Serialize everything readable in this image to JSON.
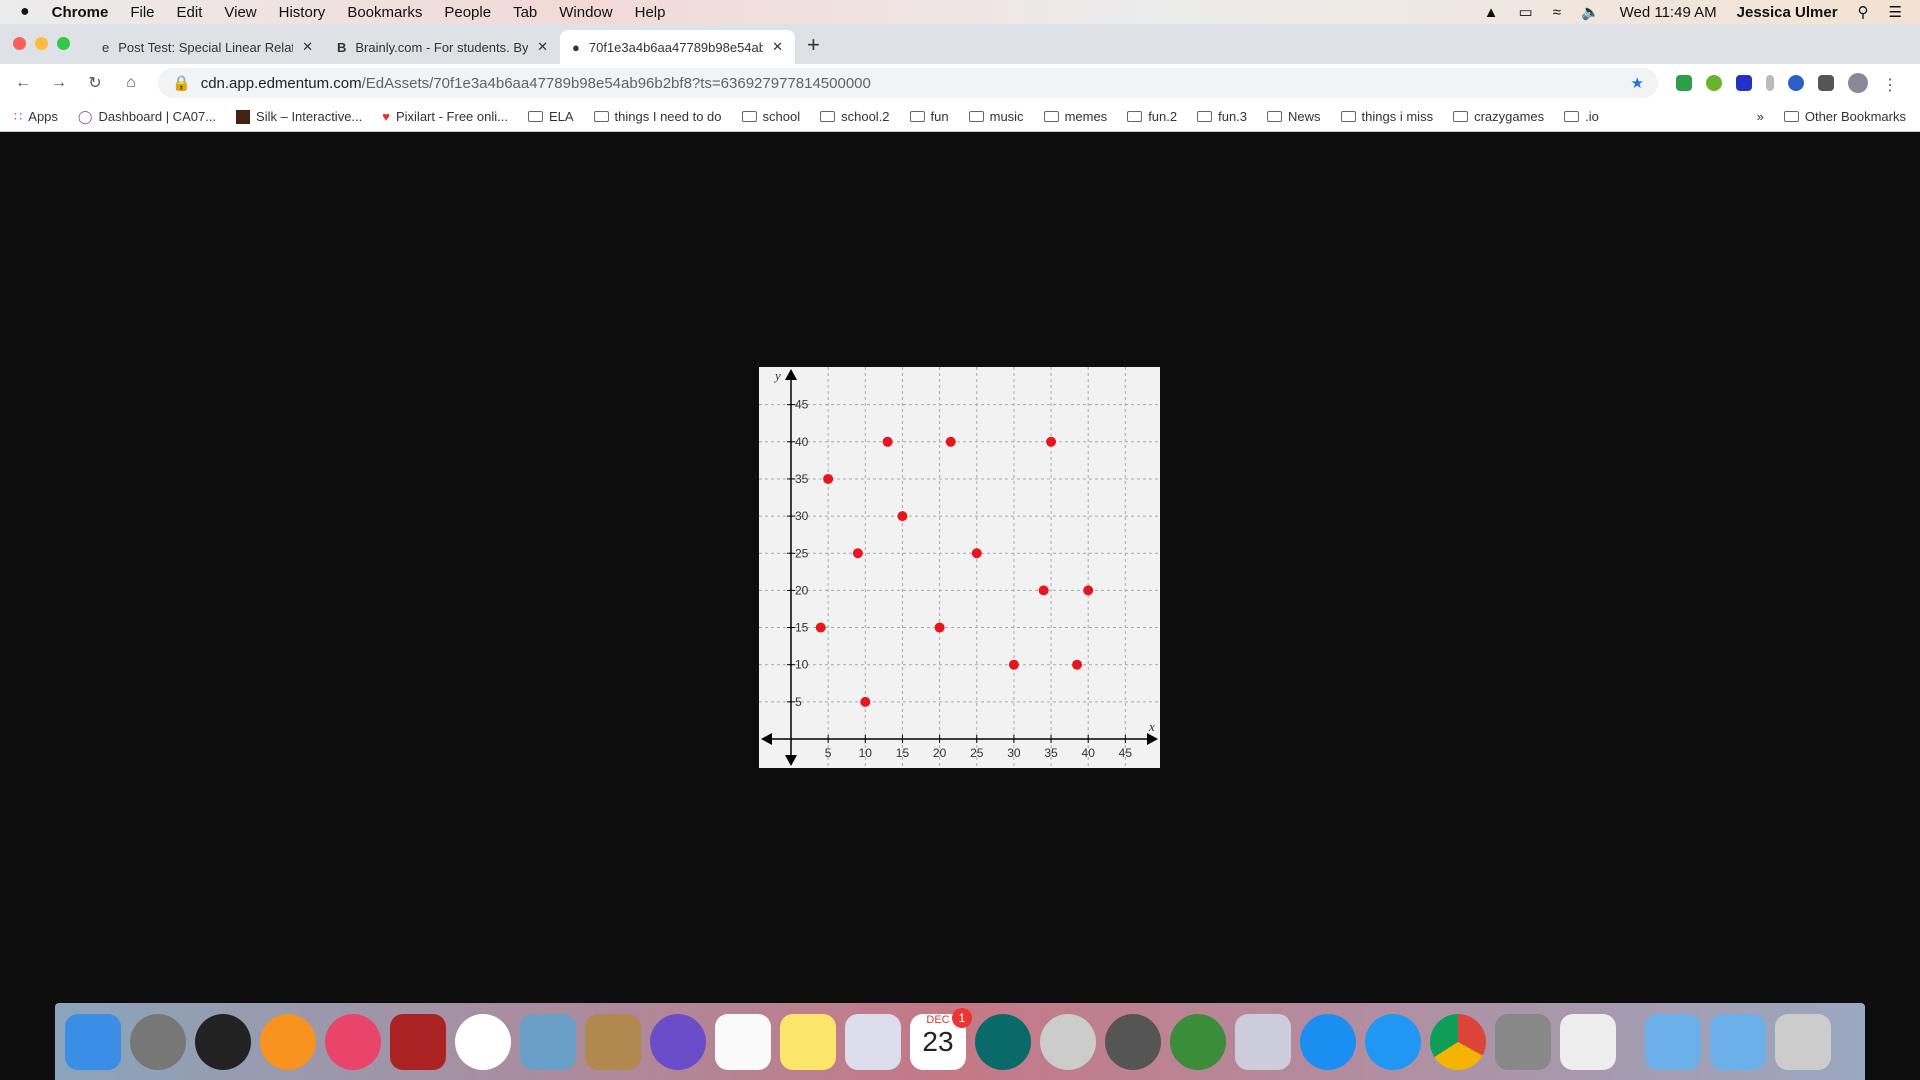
{
  "menubar": {
    "app": "Chrome",
    "items": [
      "File",
      "Edit",
      "View",
      "History",
      "Bookmarks",
      "People",
      "Tab",
      "Window",
      "Help"
    ],
    "clock": "Wed 11:49 AM",
    "user": "Jessica Ulmer"
  },
  "tabs": [
    {
      "title": "Post Test: Special Linear Relati"
    },
    {
      "title": "Brainly.com - For students. By"
    },
    {
      "title": "70f1e3a4b6aa47789b98e54ab"
    }
  ],
  "address": {
    "host": "cdn.app.edmentum.com",
    "path": "/EdAssets/70f1e3a4b6aa47789b98e54ab96b2bf8?ts=636927977814500000"
  },
  "bookmarks": [
    "Apps",
    "Dashboard | CA07...",
    "Silk – Interactive...",
    "Pixilart - Free onli...",
    "ELA",
    "things I need to do",
    "school",
    "school.2",
    "fun",
    "music",
    "memes",
    "fun.2",
    "fun.3",
    "News",
    "things i miss",
    "crazygames",
    ".io"
  ],
  "other_bookmarks": "Other Bookmarks",
  "dock": {
    "calendar_month": "DEC",
    "calendar_day": "23",
    "badge": "1"
  },
  "chart_data": {
    "type": "scatter",
    "xlabel": "x",
    "ylabel": "y",
    "xlim": [
      0,
      45
    ],
    "ylim": [
      0,
      45
    ],
    "xticks": [
      5,
      10,
      15,
      20,
      25,
      30,
      35,
      40,
      45
    ],
    "yticks": [
      5,
      10,
      15,
      20,
      25,
      30,
      35,
      40,
      45
    ],
    "grid": true,
    "color": "#e8141e",
    "points": [
      [
        4,
        15
      ],
      [
        5,
        35
      ],
      [
        9,
        25
      ],
      [
        10,
        5
      ],
      [
        13,
        40
      ],
      [
        15,
        30
      ],
      [
        20,
        15
      ],
      [
        21.5,
        40
      ],
      [
        25,
        25
      ],
      [
        30,
        10
      ],
      [
        34,
        20
      ],
      [
        35,
        40
      ],
      [
        38.5,
        10
      ],
      [
        40,
        20
      ]
    ]
  }
}
